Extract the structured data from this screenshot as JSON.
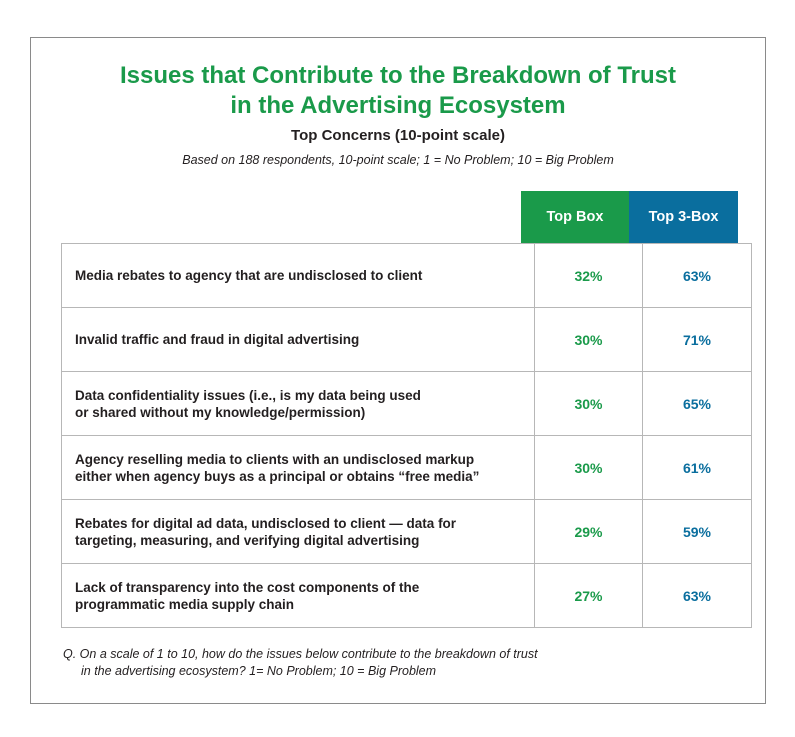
{
  "chart_data": {
    "type": "table",
    "title_line1": "Issues that Contribute to the Breakdown of Trust",
    "title_line2": "in the Advertising Ecosystem",
    "subtitle": "Top Concerns (10-point scale)",
    "note": "Based on 188 respondents, 10-point scale; 1 = No Problem; 10 = Big Problem",
    "columns": [
      "Top Box",
      "Top 3-Box"
    ],
    "rows": [
      {
        "line1": "Media rebates to agency that are undisclosed to client",
        "line2": "",
        "top_box": "32%",
        "top3_box": "63%"
      },
      {
        "line1": "Invalid traffic and fraud in digital advertising",
        "line2": "",
        "top_box": "30%",
        "top3_box": "71%"
      },
      {
        "line1": "Data confidentiality issues (i.e., is my data being used",
        "line2": "or shared without my knowledge/permission)",
        "top_box": "30%",
        "top3_box": "65%"
      },
      {
        "line1": "Agency reselling media to clients with an undisclosed markup",
        "line2": "either when agency buys as a principal or obtains “free media”",
        "top_box": "30%",
        "top3_box": "61%"
      },
      {
        "line1": "Rebates for digital ad data, undisclosed to client — data for",
        "line2": "targeting, measuring, and verifying digital advertising",
        "top_box": "29%",
        "top3_box": "59%"
      },
      {
        "line1": "Lack of transparency into the cost components of the",
        "line2": "programmatic media supply chain",
        "top_box": "27%",
        "top3_box": "63%"
      }
    ],
    "values_top_box": [
      32,
      30,
      30,
      30,
      29,
      27
    ],
    "values_top3_box": [
      63,
      71,
      65,
      61,
      59,
      63
    ],
    "question_line1": "Q. On a scale of 1 to 10, how do the issues below contribute to the breakdown of trust",
    "question_line2": "in the advertising ecosystem? 1= No Problem; 10 = Big Problem"
  },
  "colors": {
    "title_green": "#1a9a4a",
    "top_box_green": "#1a9a4a",
    "top3_box_blue": "#0a6e9e",
    "border_gray": "#b7b7b7"
  }
}
